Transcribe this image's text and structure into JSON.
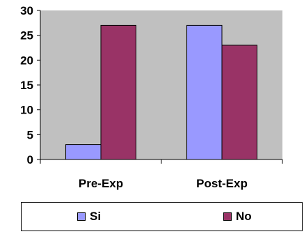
{
  "chart_data": {
    "type": "bar",
    "categories": [
      "Pre-Exp",
      "Post-Exp"
    ],
    "series": [
      {
        "name": "Si",
        "values": [
          3,
          27
        ],
        "color": "#9999FF"
      },
      {
        "name": "No",
        "values": [
          27,
          23
        ],
        "color": "#993366"
      }
    ],
    "ylim": [
      0,
      30
    ],
    "yticks": [
      "0",
      "5",
      "10",
      "15",
      "20",
      "25",
      "30"
    ],
    "plot_background": "#C0C0C0",
    "grid": false,
    "legend_position": "bottom"
  }
}
